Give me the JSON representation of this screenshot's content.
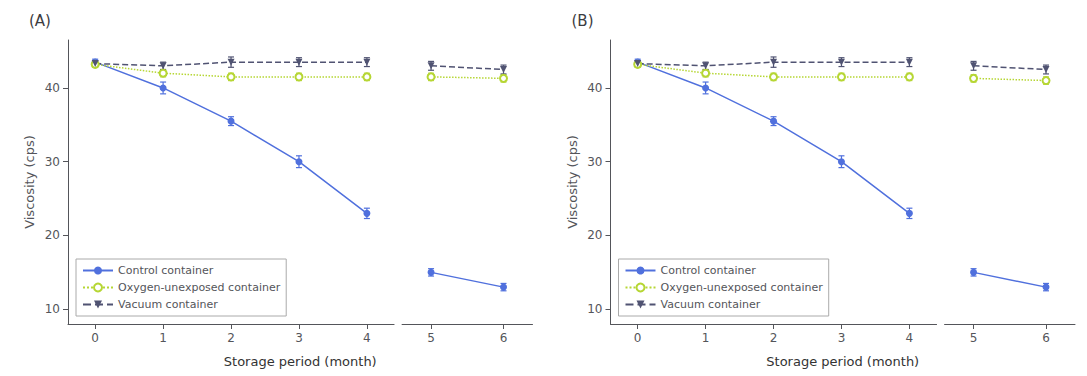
{
  "chart_data": [
    {
      "type": "line",
      "title": "(A)",
      "xlabel": "Storage period (month)",
      "ylabel": "Viscosity (cps)",
      "x": [
        0,
        1,
        2,
        3,
        4
      ],
      "xlim": [
        -0.4,
        4.4
      ],
      "xticks": [
        0,
        1,
        2,
        3,
        4
      ],
      "ylim": [
        8,
        46.5
      ],
      "yticks": [
        10,
        20,
        30,
        40
      ],
      "grid": false,
      "legend": "lower left",
      "series": [
        {
          "name": "Control container",
          "values": [
            43.5,
            40.0,
            35.5,
            30.0,
            23.0
          ],
          "yerr": [
            0.4,
            0.8,
            0.6,
            0.8,
            0.7
          ],
          "marker": "circle",
          "line_style": "solid"
        },
        {
          "name": "Oxygen-unexposed container",
          "values": [
            43.2,
            42.0,
            41.5,
            41.5,
            41.5
          ],
          "yerr": [
            0.4,
            0.5,
            0.5,
            0.5,
            0.5
          ],
          "marker": "open_circle",
          "line_style": "dotted"
        },
        {
          "name": "Vacuum container",
          "values": [
            43.3,
            43.0,
            43.5,
            43.5,
            43.5
          ],
          "yerr": [
            0.4,
            0.5,
            0.7,
            0.6,
            0.6
          ],
          "marker": "triangle_down",
          "line_style": "dashed"
        }
      ]
    },
    {
      "type": "line",
      "x": [
        5,
        6
      ],
      "xlim": [
        4.6,
        6.4
      ],
      "xticks": [
        5,
        6
      ],
      "ylim": [
        8,
        46.5
      ],
      "grid": false,
      "tick_labels": "x",
      "series": [
        {
          "values": [
            15.0,
            13.0
          ],
          "yerr": [
            0.5,
            0.5
          ],
          "marker": "circle",
          "line_style": "solid"
        },
        {
          "values": [
            41.5,
            41.3
          ],
          "yerr": [
            0.5,
            0.5
          ],
          "marker": "open_circle",
          "line_style": "dotted"
        },
        {
          "values": [
            43.0,
            42.5
          ],
          "yerr": [
            0.6,
            0.6
          ],
          "marker": "triangle_down",
          "line_style": "dashed"
        }
      ]
    },
    {
      "type": "line",
      "title": "(B)",
      "xlabel": "Storage period (month)",
      "ylabel": "Viscosity (cps)",
      "x": [
        0,
        1,
        2,
        3,
        4
      ],
      "xlim": [
        -0.4,
        4.4
      ],
      "xticks": [
        0,
        1,
        2,
        3,
        4
      ],
      "ylim": [
        8,
        46.5
      ],
      "yticks": [
        10,
        20,
        30,
        40
      ],
      "grid": false,
      "legend": "lower left",
      "series": [
        {
          "name": "Control container",
          "values": [
            43.5,
            40.0,
            35.5,
            30.0,
            23.0
          ],
          "yerr": [
            0.4,
            0.8,
            0.6,
            0.8,
            0.7
          ],
          "marker": "circle",
          "line_style": "solid"
        },
        {
          "name": "Oxygen-unexposed container",
          "values": [
            43.2,
            42.0,
            41.5,
            41.5,
            41.5
          ],
          "yerr": [
            0.4,
            0.5,
            0.5,
            0.5,
            0.5
          ],
          "marker": "open_circle",
          "line_style": "dotted"
        },
        {
          "name": "Vacuum container",
          "values": [
            43.3,
            43.0,
            43.5,
            43.5,
            43.5
          ],
          "yerr": [
            0.4,
            0.5,
            0.7,
            0.6,
            0.6
          ],
          "marker": "triangle_down",
          "line_style": "dashed"
        }
      ]
    },
    {
      "type": "line",
      "x": [
        5,
        6
      ],
      "xlim": [
        4.6,
        6.4
      ],
      "xticks": [
        5,
        6
      ],
      "ylim": [
        8,
        46.5
      ],
      "grid": false,
      "tick_labels": "x",
      "series": [
        {
          "values": [
            15.0,
            13.0
          ],
          "yerr": [
            0.5,
            0.5
          ],
          "marker": "circle",
          "line_style": "solid"
        },
        {
          "values": [
            41.3,
            41.0
          ],
          "yerr": [
            0.5,
            0.5
          ],
          "marker": "open_circle",
          "line_style": "dotted"
        },
        {
          "values": [
            43.0,
            42.5
          ],
          "yerr": [
            0.6,
            0.6
          ],
          "marker": "triangle_down",
          "line_style": "dashed"
        }
      ]
    }
  ]
}
